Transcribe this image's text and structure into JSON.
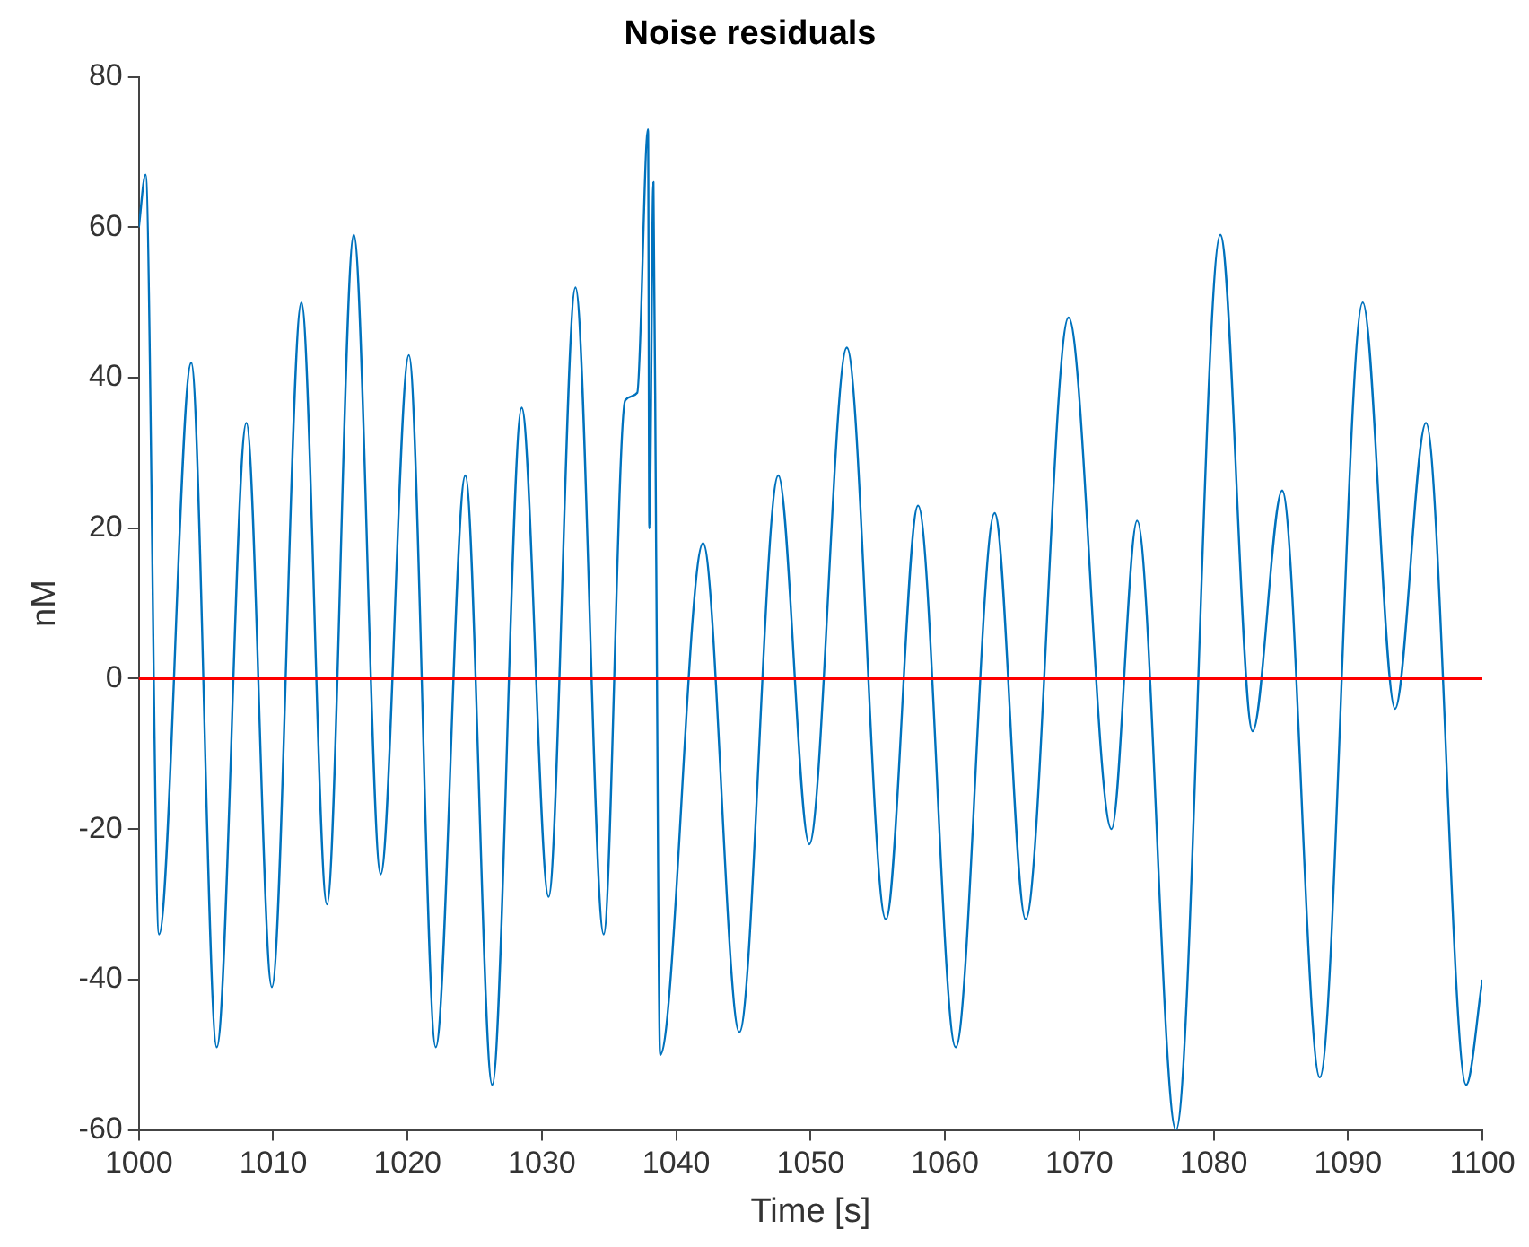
{
  "chart_data": {
    "type": "line",
    "title": "Noise residuals",
    "xlabel": "Time [s]",
    "ylabel": "nM",
    "x": [
      1000,
      1000.5,
      1001.5,
      1003.9,
      1005.8,
      1008.0,
      1009.9,
      1012.1,
      1014.0,
      1016.0,
      1018.0,
      1020.1,
      1022.1,
      1024.3,
      1026.3,
      1028.5,
      1030.5,
      1032.5,
      1034.6,
      1036.2,
      1037.1,
      1037.9,
      1038.0,
      1038.3,
      1038.5,
      1038.8,
      1042.0,
      1044.7,
      1047.6,
      1049.9,
      1052.7,
      1055.6,
      1058.0,
      1060.8,
      1063.7,
      1066.0,
      1069.2,
      1072.4,
      1074.3,
      1077.2,
      1080.5,
      1082.9,
      1085.1,
      1087.9,
      1091.1,
      1093.5,
      1095.8,
      1098.8,
      1100
    ],
    "series": [
      {
        "color": "#0072bd",
        "values": [
          60,
          67,
          -34,
          42,
          -49,
          34,
          -41,
          50,
          -30,
          59,
          -26,
          43,
          -49,
          27,
          -54,
          36,
          -29,
          52,
          -34,
          37,
          38,
          73,
          20,
          66,
          18,
          -50,
          18,
          -47,
          27,
          -22,
          44,
          -32,
          23,
          -49,
          22,
          -32,
          48,
          -20,
          21,
          -60,
          59,
          -7,
          25,
          -53,
          50,
          -4,
          34,
          -54,
          -40
        ]
      }
    ],
    "xlim": [
      1000,
      1100
    ],
    "xticks": [
      1000,
      1010,
      1020,
      1030,
      1040,
      1050,
      1060,
      1070,
      1080,
      1090,
      1100
    ],
    "ylim": [
      -60,
      80
    ],
    "yticks": [
      -60,
      -40,
      -20,
      0,
      20,
      40,
      60,
      80
    ],
    "grid": false,
    "legend": false,
    "marker": "none",
    "line_style": "solid",
    "ref_lines": [
      {
        "axis": "y",
        "value": 0,
        "color": "#ff0000"
      }
    ]
  }
}
